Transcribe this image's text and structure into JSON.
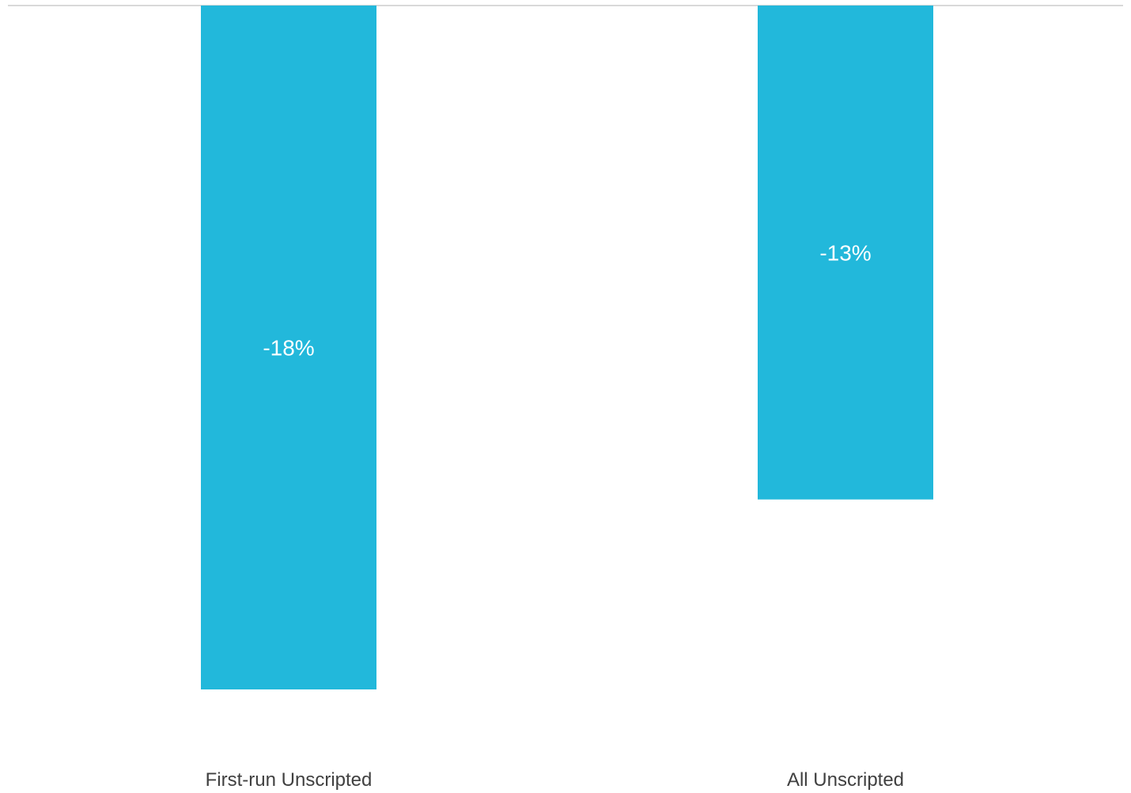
{
  "chart_data": {
    "type": "bar",
    "categories": [
      "First-run Unscripted",
      "All Unscripted"
    ],
    "values": [
      -18,
      -13
    ],
    "data_labels": [
      "-18%",
      "-13%"
    ],
    "ylim": [
      -18,
      0
    ],
    "grid": false,
    "legend": "none",
    "title": "",
    "xlabel": "",
    "ylabel": ""
  },
  "colors": {
    "bar": "#22b8db",
    "data_label": "#ffffff",
    "category_label": "#404040",
    "baseline": "#d9d9d9"
  }
}
